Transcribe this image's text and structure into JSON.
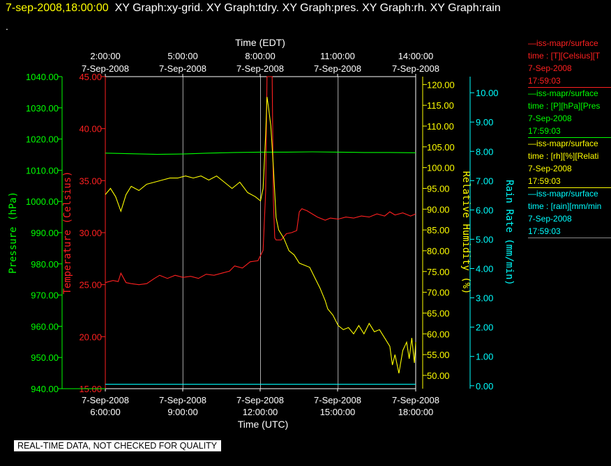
{
  "title": {
    "timestamp": "7-sep-2008,18:00:00",
    "graphs": "XY Graph:xy-grid.  XY Graph:tdry.  XY Graph:pres.  XY Graph:rh.  XY Graph:rain"
  },
  "dot": ".",
  "banner": "REAL-TIME DATA, NOT CHECKED FOR QUALITY",
  "legend": [
    {
      "color": "#ff2020",
      "name": "—iss-mapr/surface",
      "units": "time : [T][Celsius][T",
      "date": "7-Sep-2008",
      "time": "17:59:03"
    },
    {
      "color": "#00ff00",
      "name": "—iss-mapr/surface",
      "units": "time : [P][hPa][Pres",
      "date": "7-Sep-2008",
      "time": "17:59:03"
    },
    {
      "color": "#ffff00",
      "name": "—iss-mapr/surface",
      "units": "time : [rh][%][Relati",
      "date": "7-Sep-2008",
      "time": "17:59:03"
    },
    {
      "color": "#00ffff",
      "name": "—iss-mapr/surface",
      "units": "time : [rain][mm/min",
      "date": "7-Sep-2008",
      "time": "17:59:03"
    }
  ],
  "chart_data": {
    "type": "line",
    "xlabel_top": "Time (EDT)",
    "xlabel_bottom": "Time (UTC)",
    "x_top_ticks": [
      {
        "time": "2:00:00",
        "date": "7-Sep-2008"
      },
      {
        "time": "5:00:00",
        "date": "7-Sep-2008"
      },
      {
        "time": "8:00:00",
        "date": "7-Sep-2008"
      },
      {
        "time": "11:00:00",
        "date": "7-Sep-2008"
      },
      {
        "time": "14:00:00",
        "date": "7-Sep-2008"
      }
    ],
    "x_bottom_ticks": [
      {
        "date": "7-Sep-2008",
        "time": "6:00:00"
      },
      {
        "date": "7-Sep-2008",
        "time": "9:00:00"
      },
      {
        "date": "7-Sep-2008",
        "time": "12:00:00"
      },
      {
        "date": "7-Sep-2008",
        "time": "15:00:00"
      },
      {
        "date": "7-Sep-2008",
        "time": "18:00:00"
      }
    ],
    "x_utc_hours_range": [
      6,
      18
    ],
    "grid": true,
    "axes": {
      "pressure": {
        "label": "Pressure (hPa)",
        "color": "#00ff00",
        "range": [
          940,
          1040
        ],
        "ticks": [
          "1040.00",
          "1030.00",
          "1020.00",
          "1010.00",
          "1000.00",
          "990.00",
          "980.00",
          "970.00",
          "960.00",
          "950.00",
          "940.00"
        ]
      },
      "temperature": {
        "label": "Temperature (Celsius)",
        "color": "#ff2020",
        "range": [
          15,
          45
        ],
        "ticks": [
          "45.00",
          "40.00",
          "35.00",
          "30.00",
          "25.00",
          "20.00",
          "15.00"
        ]
      },
      "rh": {
        "label": "Relative Humidity (%)",
        "color": "#ffff00",
        "range": [
          46.8,
          121.9
        ],
        "ticks": [
          "120.00",
          "115.00",
          "110.00",
          "105.00",
          "100.00",
          "95.00",
          "90.00",
          "85.00",
          "80.00",
          "75.00",
          "70.00",
          "65.00",
          "60.00",
          "55.00",
          "50.00"
        ]
      },
      "rain": {
        "label": "Rain Rate (mm/min)",
        "color": "#00ffff",
        "range": [
          -0.1,
          10.55
        ],
        "ticks": [
          "10.00",
          "9.00",
          "8.00",
          "7.00",
          "6.00",
          "5.00",
          "4.00",
          "3.00",
          "2.00",
          "1.00",
          "0.00"
        ]
      }
    },
    "series": [
      {
        "name": "Temperature",
        "axis": "temperature",
        "color": "#ff2020",
        "points": [
          [
            6.0,
            25.2
          ],
          [
            6.3,
            25.4
          ],
          [
            6.5,
            25.3
          ],
          [
            6.6,
            26.1
          ],
          [
            6.8,
            25.2
          ],
          [
            7.0,
            25.1
          ],
          [
            7.3,
            25.0
          ],
          [
            7.6,
            25.1
          ],
          [
            7.9,
            25.6
          ],
          [
            8.1,
            25.9
          ],
          [
            8.4,
            25.6
          ],
          [
            8.7,
            25.9
          ],
          [
            9.0,
            25.7
          ],
          [
            9.3,
            25.8
          ],
          [
            9.6,
            25.6
          ],
          [
            9.9,
            26.0
          ],
          [
            10.2,
            25.9
          ],
          [
            10.5,
            26.1
          ],
          [
            10.8,
            26.3
          ],
          [
            11.0,
            26.8
          ],
          [
            11.3,
            26.6
          ],
          [
            11.6,
            27.2
          ],
          [
            11.9,
            27.3
          ],
          [
            12.1,
            28.3
          ],
          [
            12.2,
            34.0
          ],
          [
            12.25,
            45.5
          ],
          [
            12.3,
            45.5
          ],
          [
            12.45,
            45.5
          ],
          [
            12.5,
            33.0
          ],
          [
            12.55,
            29.5
          ],
          [
            12.6,
            29.3
          ],
          [
            12.8,
            29.3
          ],
          [
            13.0,
            29.9
          ],
          [
            13.2,
            30.0
          ],
          [
            13.4,
            30.2
          ],
          [
            13.5,
            32.0
          ],
          [
            13.6,
            32.3
          ],
          [
            13.8,
            32.1
          ],
          [
            14.0,
            31.8
          ],
          [
            14.2,
            31.5
          ],
          [
            14.5,
            31.2
          ],
          [
            14.7,
            31.4
          ],
          [
            15.0,
            31.3
          ],
          [
            15.3,
            31.5
          ],
          [
            15.6,
            31.4
          ],
          [
            15.9,
            31.6
          ],
          [
            16.2,
            31.5
          ],
          [
            16.5,
            31.8
          ],
          [
            16.8,
            31.6
          ],
          [
            17.0,
            32.0
          ],
          [
            17.2,
            31.7
          ],
          [
            17.5,
            31.9
          ],
          [
            17.8,
            31.6
          ],
          [
            18.0,
            31.8
          ]
        ]
      },
      {
        "name": "Pressure",
        "axis": "pressure",
        "color": "#00ff00",
        "points": [
          [
            6.0,
            1015.5
          ],
          [
            7.0,
            1015.3
          ],
          [
            8.0,
            1015.1
          ],
          [
            9.0,
            1015.2
          ],
          [
            10.0,
            1015.5
          ],
          [
            11.0,
            1015.7
          ],
          [
            12.0,
            1015.8
          ],
          [
            13.0,
            1015.8
          ],
          [
            14.0,
            1015.9
          ],
          [
            15.0,
            1015.8
          ],
          [
            16.0,
            1015.7
          ],
          [
            17.0,
            1015.7
          ],
          [
            18.0,
            1015.6
          ]
        ]
      },
      {
        "name": "Relative Humidity",
        "axis": "rh",
        "color": "#ffff00",
        "points": [
          [
            6.0,
            93.5
          ],
          [
            6.2,
            95.0
          ],
          [
            6.4,
            93.0
          ],
          [
            6.6,
            89.5
          ],
          [
            6.8,
            93.5
          ],
          [
            7.0,
            95.5
          ],
          [
            7.3,
            94.5
          ],
          [
            7.6,
            96.0
          ],
          [
            7.9,
            96.5
          ],
          [
            8.2,
            97.0
          ],
          [
            8.5,
            97.5
          ],
          [
            8.8,
            97.5
          ],
          [
            9.1,
            98.0
          ],
          [
            9.4,
            97.5
          ],
          [
            9.7,
            98.0
          ],
          [
            10.0,
            97.0
          ],
          [
            10.3,
            98.0
          ],
          [
            10.6,
            96.5
          ],
          [
            10.9,
            95.0
          ],
          [
            11.2,
            96.5
          ],
          [
            11.5,
            94.0
          ],
          [
            11.8,
            93.0
          ],
          [
            12.0,
            92.0
          ],
          [
            12.1,
            95.0
          ],
          [
            12.2,
            108.0
          ],
          [
            12.25,
            117.0
          ],
          [
            12.3,
            115.0
          ],
          [
            12.4,
            110.0
          ],
          [
            12.5,
            100.0
          ],
          [
            12.6,
            88.0
          ],
          [
            12.7,
            85.0
          ],
          [
            12.9,
            83.0
          ],
          [
            13.1,
            80.0
          ],
          [
            13.3,
            79.0
          ],
          [
            13.5,
            77.0
          ],
          [
            13.7,
            76.5
          ],
          [
            13.9,
            76.0
          ],
          [
            14.1,
            73.5
          ],
          [
            14.3,
            71.0
          ],
          [
            14.5,
            68.0
          ],
          [
            14.6,
            66.0
          ],
          [
            14.8,
            64.5
          ],
          [
            15.0,
            62.0
          ],
          [
            15.2,
            61.0
          ],
          [
            15.4,
            61.5
          ],
          [
            15.6,
            60.0
          ],
          [
            15.8,
            62.0
          ],
          [
            16.0,
            60.0
          ],
          [
            16.2,
            62.5
          ],
          [
            16.4,
            60.5
          ],
          [
            16.6,
            61.0
          ],
          [
            16.8,
            59.0
          ],
          [
            17.0,
            57.0
          ],
          [
            17.1,
            52.5
          ],
          [
            17.2,
            55.0
          ],
          [
            17.35,
            50.5
          ],
          [
            17.5,
            56.0
          ],
          [
            17.65,
            58.0
          ],
          [
            17.75,
            54.0
          ],
          [
            17.85,
            59.0
          ],
          [
            17.95,
            53.0
          ],
          [
            18.0,
            58.0
          ]
        ]
      },
      {
        "name": "Rain Rate",
        "axis": "rain",
        "color": "#00ffff",
        "points": [
          [
            6.0,
            0.05
          ],
          [
            18.0,
            0.05
          ]
        ]
      }
    ]
  }
}
